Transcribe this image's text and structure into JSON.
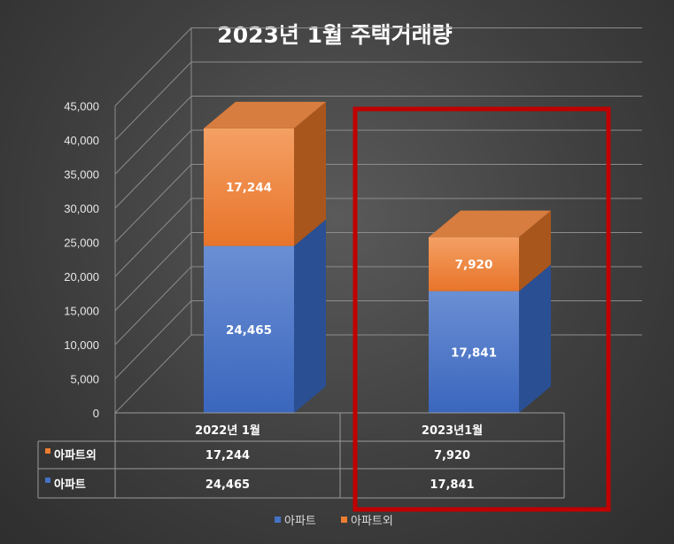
{
  "chart_data": {
    "type": "bar",
    "stacked": true,
    "three_d": true,
    "title": "2023년 1월 주택거래량",
    "categories": [
      "2022년 1월",
      "2023년1월"
    ],
    "series": [
      {
        "name": "아파트",
        "values": [
          24465,
          17841
        ],
        "value_labels": [
          "24,465",
          "17,841"
        ]
      },
      {
        "name": "아파트외",
        "values": [
          17244,
          7920
        ],
        "value_labels": [
          "17,244",
          "7,920"
        ]
      }
    ],
    "ylim": [
      0,
      45000
    ],
    "yticks": [
      "0",
      "5,000",
      "10,000",
      "15,000",
      "20,000",
      "25,000",
      "30,000",
      "35,000",
      "40,000",
      "45,000"
    ],
    "data_table": {
      "rows": [
        {
          "name": "아파트외",
          "values": [
            "17,244",
            "7,920"
          ]
        },
        {
          "name": "아파트",
          "values": [
            "24,465",
            "17,841"
          ]
        }
      ]
    },
    "legend_position": "bottom",
    "highlight_category": "2023년1월",
    "colors": {
      "아파트": "#4472c4",
      "아파트외": "#ed7d31",
      "highlight": "#c00000"
    }
  }
}
